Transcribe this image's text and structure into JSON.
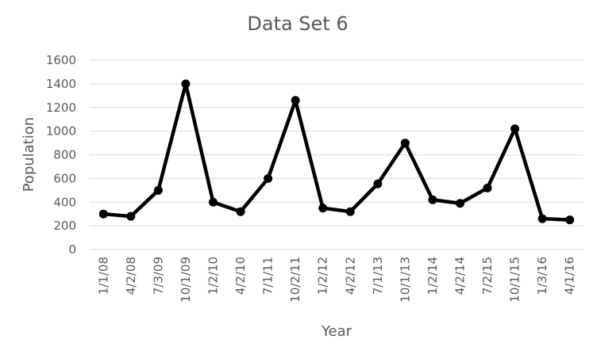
{
  "chart_data": {
    "type": "line",
    "title": "Data Set 6",
    "xlabel": "Year",
    "ylabel": "Population",
    "categories": [
      "1/1/08",
      "4/2/08",
      "7/3/09",
      "10/1/09",
      "1/2/10",
      "4/2/10",
      "7/1/11",
      "10/2/11",
      "1/2/12",
      "4/2/12",
      "7/1/13",
      "10/1/13",
      "1/2/14",
      "4/2/14",
      "7/2/15",
      "10/1/15",
      "1/3/16",
      "4/1/16"
    ],
    "series": [
      {
        "values": [
          300,
          280,
          500,
          1400,
          400,
          320,
          600,
          1260,
          350,
          320,
          555,
          900,
          420,
          390,
          520,
          1020,
          260,
          250
        ]
      }
    ],
    "ylim": [
      0,
      1600
    ],
    "yticks": [
      0,
      200,
      400,
      600,
      800,
      1000,
      1200,
      1400,
      1600
    ],
    "grid": true,
    "legend": "none",
    "colors": {
      "line": "#000000",
      "marker": "#000000",
      "grid": "#d9d9d9",
      "text": "#595959"
    }
  }
}
